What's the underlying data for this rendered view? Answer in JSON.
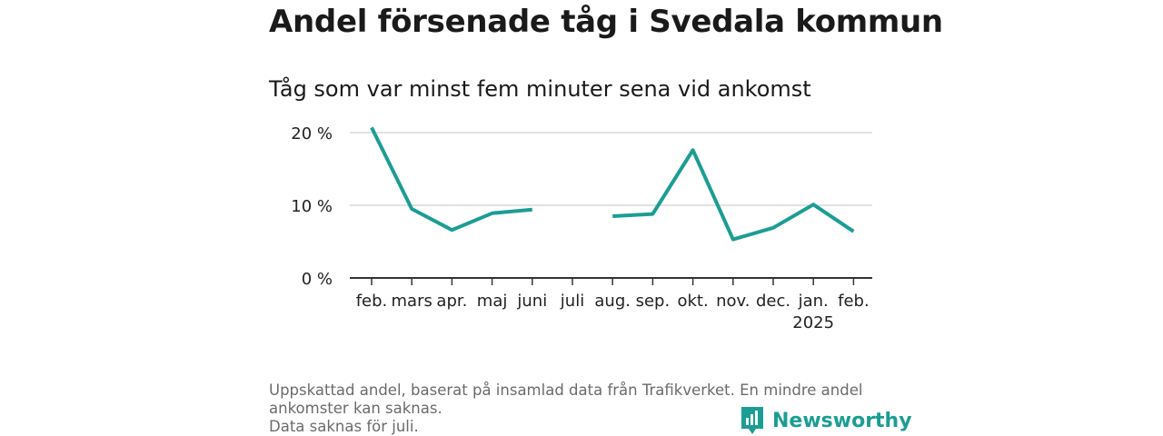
{
  "title": "Andel försenade tåg i Svedala kommun",
  "subtitle": "Tåg som var minst fem minuter sena vid ankomst",
  "footer": {
    "line1": "Uppskattad andel, baserat på insamlad data från Trafikverket. En mindre andel",
    "line2": "ankomster kan saknas.",
    "line3": "Data saknas för juli."
  },
  "brand": {
    "name": "Newsworthy",
    "color": "#1c9d94"
  },
  "chart_data": {
    "type": "line",
    "categories": [
      "feb.",
      "mars",
      "apr.",
      "maj",
      "juni",
      "juli",
      "aug.",
      "sep.",
      "okt.",
      "nov.",
      "dec.",
      "jan.",
      "feb."
    ],
    "category_sublabels": [
      "",
      "",
      "",
      "",
      "",
      "",
      "",
      "",
      "",
      "",
      "",
      "2025",
      ""
    ],
    "series": [
      {
        "values": [
          20.7,
          9.5,
          6.6,
          8.9,
          9.4,
          null,
          8.5,
          8.8,
          17.6,
          5.3,
          6.9,
          10.1,
          6.4
        ]
      }
    ],
    "y_ticks": [
      0,
      10,
      20
    ],
    "y_tick_labels": [
      "0 %",
      "10 %",
      "20 %"
    ],
    "ylim": [
      0,
      22
    ],
    "grid": true,
    "line_color": "#1c9d94"
  }
}
